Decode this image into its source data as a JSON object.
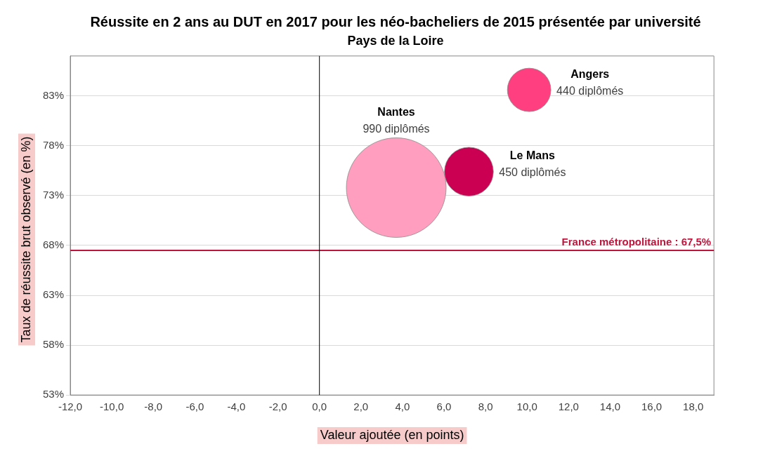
{
  "chart_data": {
    "type": "bubble",
    "title": "Réussite en 2 ans au DUT en 2017 pour les néo-bacheliers de 2015 présentée par université",
    "subtitle": "Pays de la Loire",
    "xlabel": "Valeur ajoutée (en points)",
    "ylabel": "Taux de réussite brut observé (en %)",
    "series": [
      {
        "name": "Angers",
        "color": "#ff3f7f",
        "x": [
          10.1
        ],
        "values": [
          83.6
        ],
        "sizes": [
          0.19
        ]
      },
      {
        "name": "Le Mans",
        "color": "#cc0052",
        "x": [
          7.2
        ],
        "values": [
          75.4
        ],
        "sizes": [
          0.24
        ]
      },
      {
        "name": "Nantes",
        "color": "#ff9ebf",
        "x": [
          3.7
        ],
        "values": [
          73.8
        ],
        "sizes": [
          1
        ]
      }
    ],
    "annotations": [
      "440 diplômés",
      "450 diplômés",
      "990 diplômés"
    ],
    "ref_lines": [
      {
        "axis": "y",
        "value": 67.5,
        "label": "France métropolitaine : 67,5%",
        "color": "#c0143c"
      },
      {
        "axis": "x",
        "value": 0,
        "label": null,
        "color": "#000000"
      }
    ],
    "xlim": [
      -12,
      19
    ],
    "ylim": [
      53,
      87
    ],
    "xticks": [
      {
        "value": -12,
        "label": "-12,0"
      },
      {
        "value": -10,
        "label": "-10,0"
      },
      {
        "value": -8,
        "label": "-8,0"
      },
      {
        "value": -6,
        "label": "-6,0"
      },
      {
        "value": -4,
        "label": "-4,0"
      },
      {
        "value": -2,
        "label": "-2,0"
      },
      {
        "value": 0,
        "label": "0,0"
      },
      {
        "value": 2,
        "label": "2,0"
      },
      {
        "value": 4,
        "label": "4,0"
      },
      {
        "value": 6,
        "label": "6,0"
      },
      {
        "value": 8,
        "label": "8,0"
      },
      {
        "value": 10,
        "label": "10,0"
      },
      {
        "value": 12,
        "label": "12,0"
      },
      {
        "value": 14,
        "label": "14,0"
      },
      {
        "value": 16,
        "label": "16,0"
      },
      {
        "value": 18,
        "label": "18,0"
      }
    ],
    "yticks": [
      {
        "value": 53,
        "label": "53%"
      },
      {
        "value": 58,
        "label": "58%"
      },
      {
        "value": 63,
        "label": "63%"
      },
      {
        "value": 68,
        "label": "68%"
      },
      {
        "value": 73,
        "label": "73%"
      },
      {
        "value": 78,
        "label": "78%"
      },
      {
        "value": 83,
        "label": "83%"
      }
    ],
    "grid": "y",
    "legend": false
  }
}
